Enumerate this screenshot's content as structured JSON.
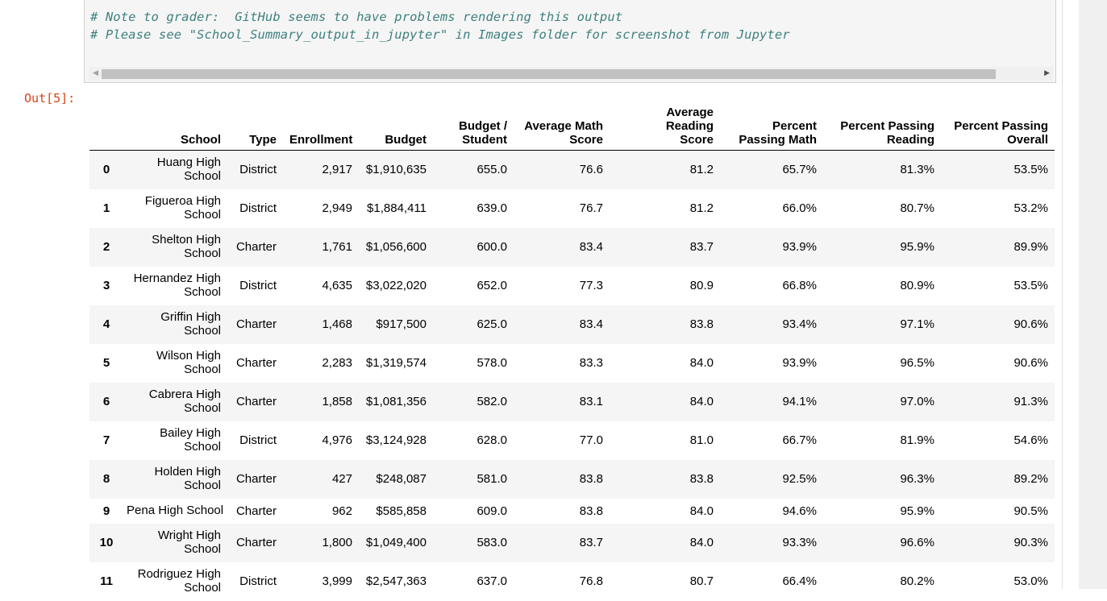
{
  "code_cell": {
    "line1": "# Note to grader:  GitHub seems to have problems rendering this output",
    "line2": "# Please see \"School_Summary_output_in_jupyter\" in Images folder for screenshot from Jupyter"
  },
  "output_prompt": "Out[5]:",
  "table": {
    "columns": [
      "School",
      "Type",
      "Enrollment",
      "Budget",
      "Budget /\nStudent",
      "Average Math\nScore",
      "Average Reading\nScore",
      "Percent\nPassing Math",
      "Percent Passing\nReading",
      "Percent Passing\nOverall"
    ],
    "rows": [
      {
        "index": "0",
        "school": "Huang High School",
        "type": "District",
        "enrollment": "2,917",
        "budget": "$1,910,635",
        "per_student": "655.0",
        "math": "76.6",
        "reading": "81.2",
        "pct_math": "65.7%",
        "pct_reading": "81.3%",
        "pct_overall": "53.5%"
      },
      {
        "index": "1",
        "school": "Figueroa High School",
        "type": "District",
        "enrollment": "2,949",
        "budget": "$1,884,411",
        "per_student": "639.0",
        "math": "76.7",
        "reading": "81.2",
        "pct_math": "66.0%",
        "pct_reading": "80.7%",
        "pct_overall": "53.2%"
      },
      {
        "index": "2",
        "school": "Shelton High School",
        "type": "Charter",
        "enrollment": "1,761",
        "budget": "$1,056,600",
        "per_student": "600.0",
        "math": "83.4",
        "reading": "83.7",
        "pct_math": "93.9%",
        "pct_reading": "95.9%",
        "pct_overall": "89.9%"
      },
      {
        "index": "3",
        "school": "Hernandez High School",
        "type": "District",
        "enrollment": "4,635",
        "budget": "$3,022,020",
        "per_student": "652.0",
        "math": "77.3",
        "reading": "80.9",
        "pct_math": "66.8%",
        "pct_reading": "80.9%",
        "pct_overall": "53.5%"
      },
      {
        "index": "4",
        "school": "Griffin High School",
        "type": "Charter",
        "enrollment": "1,468",
        "budget": "$917,500",
        "per_student": "625.0",
        "math": "83.4",
        "reading": "83.8",
        "pct_math": "93.4%",
        "pct_reading": "97.1%",
        "pct_overall": "90.6%"
      },
      {
        "index": "5",
        "school": "Wilson High School",
        "type": "Charter",
        "enrollment": "2,283",
        "budget": "$1,319,574",
        "per_student": "578.0",
        "math": "83.3",
        "reading": "84.0",
        "pct_math": "93.9%",
        "pct_reading": "96.5%",
        "pct_overall": "90.6%"
      },
      {
        "index": "6",
        "school": "Cabrera High School",
        "type": "Charter",
        "enrollment": "1,858",
        "budget": "$1,081,356",
        "per_student": "582.0",
        "math": "83.1",
        "reading": "84.0",
        "pct_math": "94.1%",
        "pct_reading": "97.0%",
        "pct_overall": "91.3%"
      },
      {
        "index": "7",
        "school": "Bailey High School",
        "type": "District",
        "enrollment": "4,976",
        "budget": "$3,124,928",
        "per_student": "628.0",
        "math": "77.0",
        "reading": "81.0",
        "pct_math": "66.7%",
        "pct_reading": "81.9%",
        "pct_overall": "54.6%"
      },
      {
        "index": "8",
        "school": "Holden High School",
        "type": "Charter",
        "enrollment": "427",
        "budget": "$248,087",
        "per_student": "581.0",
        "math": "83.8",
        "reading": "83.8",
        "pct_math": "92.5%",
        "pct_reading": "96.3%",
        "pct_overall": "89.2%"
      },
      {
        "index": "9",
        "school": "Pena High School",
        "type": "Charter",
        "enrollment": "962",
        "budget": "$585,858",
        "per_student": "609.0",
        "math": "83.8",
        "reading": "84.0",
        "pct_math": "94.6%",
        "pct_reading": "95.9%",
        "pct_overall": "90.5%"
      },
      {
        "index": "10",
        "school": "Wright High School",
        "type": "Charter",
        "enrollment": "1,800",
        "budget": "$1,049,400",
        "per_student": "583.0",
        "math": "83.7",
        "reading": "84.0",
        "pct_math": "93.3%",
        "pct_reading": "96.6%",
        "pct_overall": "90.3%"
      },
      {
        "index": "11",
        "school": "Rodriguez High School",
        "type": "District",
        "enrollment": "3,999",
        "budget": "$2,547,363",
        "per_student": "637.0",
        "math": "76.8",
        "reading": "80.7",
        "pct_math": "66.4%",
        "pct_reading": "80.2%",
        "pct_overall": "53.0%"
      }
    ]
  }
}
